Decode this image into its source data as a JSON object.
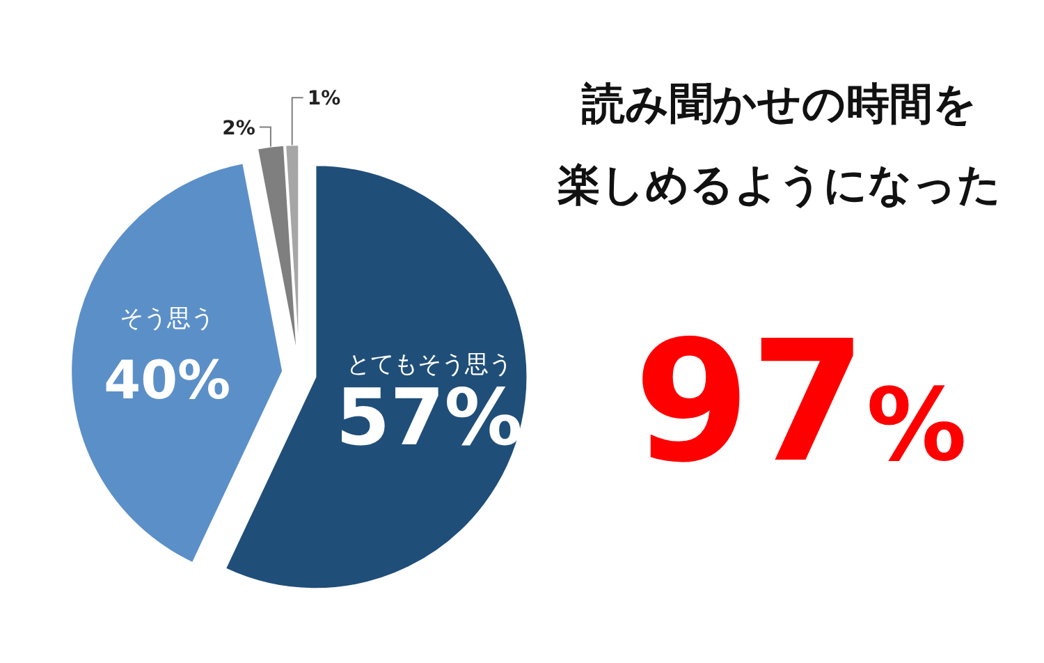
{
  "chart_data": {
    "type": "pie",
    "title": "読み聞かせの時間を楽しめるようになった",
    "categories": [
      "とてもそう思う",
      "そう思う",
      null,
      null
    ],
    "values": [
      57,
      40,
      2,
      1
    ],
    "colors": [
      "#1f4e79",
      "#5b8fc8",
      "#7f7f7f",
      "#a6a6a6"
    ],
    "value_labels": [
      "57%",
      "40%",
      "2%",
      "1%"
    ],
    "annotations": [
      "97%"
    ]
  }
}
